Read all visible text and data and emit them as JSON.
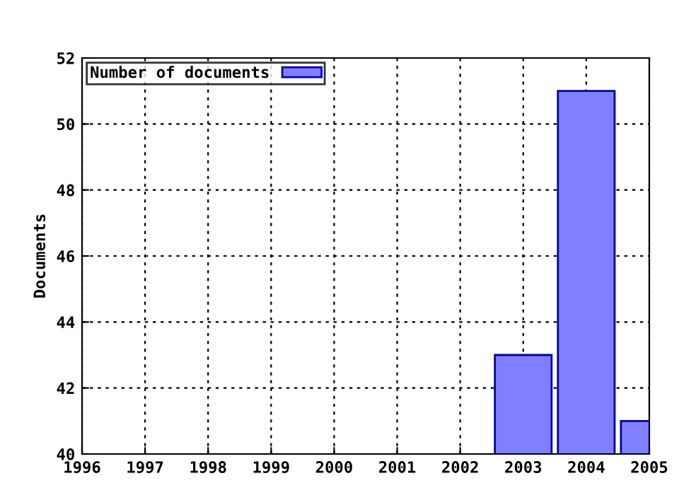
{
  "chart_data": {
    "type": "bar",
    "ylabel": "Documents",
    "x": [
      2003,
      2004,
      2005
    ],
    "series": [
      {
        "name": "Number of documents",
        "color": "#8080ff",
        "values": [
          43,
          51,
          41
        ]
      }
    ],
    "xlim": [
      1996,
      2005
    ],
    "xticks": [
      1996,
      1997,
      1998,
      1999,
      2000,
      2001,
      2002,
      2003,
      2004,
      2005
    ],
    "ylim": [
      40,
      52
    ],
    "yticks": [
      40,
      42,
      44,
      46,
      48,
      50,
      52
    ],
    "grid": true,
    "legend": "top left"
  }
}
